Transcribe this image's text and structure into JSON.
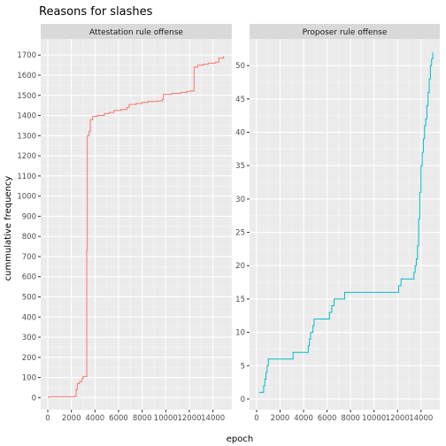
{
  "chart_data": {
    "type": "line",
    "title": "Reasons for slashes",
    "xlabel": "epoch",
    "ylabel": "cummulative frequency",
    "grid": true,
    "legend": "none",
    "facet_scales": "free_y",
    "panels": [
      {
        "name": "Attestation rule offense",
        "color": "#F8766D",
        "xlim": [
          -600,
          15600
        ],
        "ylim": [
          -60,
          1780
        ],
        "x_ticks": [
          0,
          2000,
          4000,
          6000,
          8000,
          10000,
          12000,
          14000
        ],
        "y_ticks": [
          0,
          100,
          200,
          300,
          400,
          500,
          600,
          700,
          800,
          900,
          1000,
          1100,
          1200,
          1300,
          1400,
          1500,
          1600,
          1700
        ],
        "points": [
          [
            0,
            2
          ],
          [
            100,
            4
          ],
          [
            1000,
            4
          ],
          [
            1900,
            4
          ],
          [
            2300,
            8
          ],
          [
            2400,
            40
          ],
          [
            2500,
            70
          ],
          [
            2700,
            80
          ],
          [
            2900,
            95
          ],
          [
            3000,
            105
          ],
          [
            3250,
            105
          ],
          [
            3300,
            730
          ],
          [
            3350,
            1300
          ],
          [
            3500,
            1320
          ],
          [
            3600,
            1380
          ],
          [
            3800,
            1395
          ],
          [
            4200,
            1400
          ],
          [
            4800,
            1410
          ],
          [
            5200,
            1415
          ],
          [
            5600,
            1425
          ],
          [
            6200,
            1430
          ],
          [
            6700,
            1440
          ],
          [
            6900,
            1455
          ],
          [
            7500,
            1460
          ],
          [
            8000,
            1465
          ],
          [
            8500,
            1470
          ],
          [
            9300,
            1472
          ],
          [
            9700,
            1480
          ],
          [
            9800,
            1505
          ],
          [
            10500,
            1510
          ],
          [
            11300,
            1515
          ],
          [
            11800,
            1520
          ],
          [
            12100,
            1522
          ],
          [
            12400,
            1640
          ],
          [
            12700,
            1650
          ],
          [
            13200,
            1655
          ],
          [
            13600,
            1660
          ],
          [
            14200,
            1665
          ],
          [
            14500,
            1685
          ],
          [
            14900,
            1695
          ]
        ]
      },
      {
        "name": "Proposer rule offense",
        "color": "#00BFC4",
        "xlim": [
          -600,
          15600
        ],
        "ylim": [
          -1.6,
          54
        ],
        "x_ticks": [
          0,
          2000,
          4000,
          6000,
          8000,
          10000,
          12000,
          14000
        ],
        "y_ticks": [
          0,
          5,
          10,
          15,
          20,
          25,
          30,
          35,
          40,
          45,
          50
        ],
        "points": [
          [
            200,
            1
          ],
          [
            500,
            1
          ],
          [
            600,
            2
          ],
          [
            700,
            3
          ],
          [
            800,
            4
          ],
          [
            900,
            5
          ],
          [
            1000,
            6
          ],
          [
            3000,
            6
          ],
          [
            3100,
            7
          ],
          [
            4300,
            7
          ],
          [
            4400,
            8
          ],
          [
            4500,
            9
          ],
          [
            4600,
            10
          ],
          [
            4800,
            11
          ],
          [
            4900,
            12
          ],
          [
            6000,
            12
          ],
          [
            6200,
            13
          ],
          [
            6400,
            14
          ],
          [
            6600,
            15
          ],
          [
            7300,
            15
          ],
          [
            7500,
            16
          ],
          [
            11900,
            16
          ],
          [
            12100,
            17
          ],
          [
            12300,
            18
          ],
          [
            13300,
            18
          ],
          [
            13400,
            19
          ],
          [
            13500,
            20
          ],
          [
            13600,
            21
          ],
          [
            13700,
            23
          ],
          [
            13800,
            27
          ],
          [
            13900,
            31
          ],
          [
            14000,
            35
          ],
          [
            14100,
            37
          ],
          [
            14200,
            39
          ],
          [
            14300,
            41
          ],
          [
            14400,
            42
          ],
          [
            14500,
            44
          ],
          [
            14600,
            46
          ],
          [
            14700,
            48
          ],
          [
            14800,
            50
          ],
          [
            14900,
            51
          ],
          [
            15000,
            52
          ]
        ]
      }
    ]
  }
}
